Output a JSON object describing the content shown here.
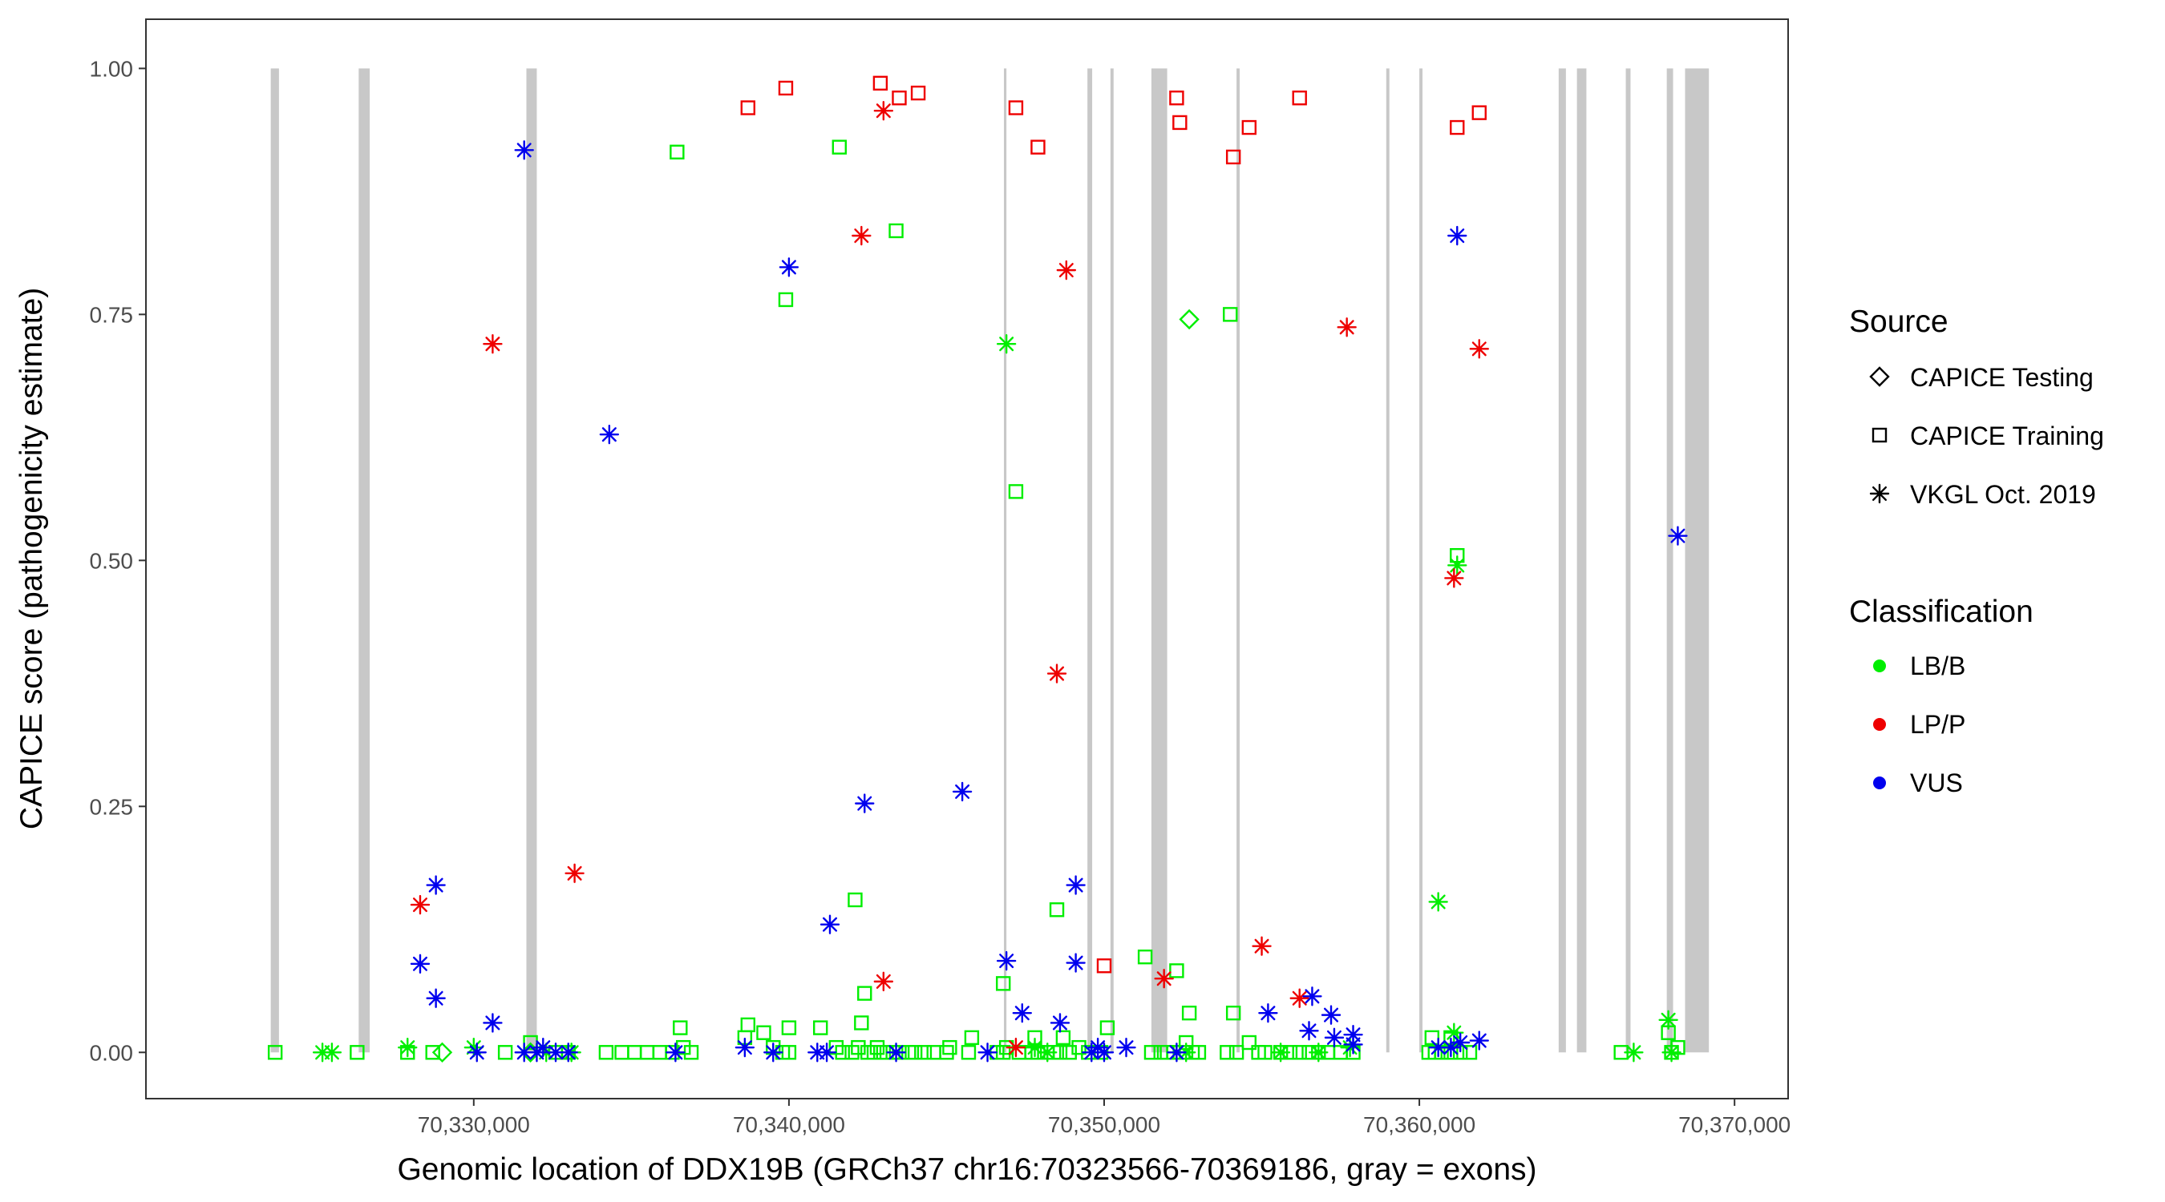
{
  "chart_data": {
    "type": "scatter",
    "title": "",
    "xlabel": "Genomic location of DDX19B (GRCh37 chr16:70323566-70369186, gray = exons)",
    "ylabel": "CAPICE score (pathogenicity estimate)",
    "xlim": [
      70319600,
      70371700
    ],
    "ylim": [
      -0.047,
      1.05
    ],
    "x_ticks": [
      70330000,
      70340000,
      70350000,
      70360000,
      70370000
    ],
    "x_tick_labels": [
      "70,330,000",
      "70,340,000",
      "70,350,000",
      "70,360,000",
      "70,370,000"
    ],
    "y_ticks": [
      0,
      0.25,
      0.5,
      0.75,
      1
    ],
    "y_tick_labels": [
      "0.00",
      "0.25",
      "0.50",
      "0.75",
      "1.00"
    ],
    "grid": false,
    "legend_placement": "right",
    "exon_color": "#c8c8c8",
    "exons": [
      [
        70323560,
        70323820
      ],
      [
        70326350,
        70326700
      ],
      [
        70331670,
        70332000
      ],
      [
        70346820,
        70346900
      ],
      [
        70349470,
        70349620
      ],
      [
        70350200,
        70350300
      ],
      [
        70351500,
        70352000
      ],
      [
        70354200,
        70354300
      ],
      [
        70358950,
        70359050
      ],
      [
        70360000,
        70360100
      ],
      [
        70364420,
        70364650
      ],
      [
        70365000,
        70365300
      ],
      [
        70366550,
        70366700
      ],
      [
        70367850,
        70368050
      ],
      [
        70368430,
        70369186
      ]
    ],
    "legends": {
      "source": {
        "title": "Source",
        "items": [
          {
            "label": "CAPICE Testing",
            "shape": "diamond"
          },
          {
            "label": "CAPICE Training",
            "shape": "square"
          },
          {
            "label": "VKGL Oct. 2019",
            "shape": "asterisk"
          }
        ]
      },
      "classification": {
        "title": "Classification",
        "items": [
          {
            "label": "LB/B",
            "color": "#00ee00"
          },
          {
            "label": "LP/P",
            "color": "#ee0000"
          },
          {
            "label": "VUS",
            "color": "#0000ee"
          }
        ]
      }
    },
    "series": [
      {
        "name": "CAPICE Testing / LB/B",
        "shape": "diamond",
        "color": "#00ee00",
        "points": [
          [
            70329000,
            0.0
          ],
          [
            70331800,
            0.0
          ],
          [
            70352700,
            0.745
          ]
        ]
      },
      {
        "name": "CAPICE Training / LB/B",
        "shape": "square",
        "color": "#00ee00",
        "points": [
          [
            70323700,
            0.0
          ],
          [
            70326300,
            0.0
          ],
          [
            70327900,
            0.0
          ],
          [
            70328700,
            0.0
          ],
          [
            70331000,
            0.0
          ],
          [
            70332600,
            0.0
          ],
          [
            70333000,
            0.0
          ],
          [
            70334200,
            0.0
          ],
          [
            70334700,
            0.0
          ],
          [
            70335100,
            0.0
          ],
          [
            70335500,
            0.0
          ],
          [
            70335900,
            0.0
          ],
          [
            70336300,
            0.0
          ],
          [
            70336650,
            0.005
          ],
          [
            70336900,
            0.0
          ],
          [
            70331800,
            0.01
          ],
          [
            70336550,
            0.025
          ],
          [
            70336450,
            0.915
          ],
          [
            70338600,
            0.015
          ],
          [
            70338700,
            0.028
          ],
          [
            70339200,
            0.02
          ],
          [
            70339500,
            0.005
          ],
          [
            70339800,
            0.0
          ],
          [
            70340000,
            0.0
          ],
          [
            70340000,
            0.025
          ],
          [
            70341000,
            0.025
          ],
          [
            70341500,
            0.005
          ],
          [
            70341700,
            0.0
          ],
          [
            70342000,
            0.0
          ],
          [
            70342200,
            0.005
          ],
          [
            70342500,
            0.0
          ],
          [
            70342700,
            0.0
          ],
          [
            70342800,
            0.005
          ],
          [
            70343000,
            0.0
          ],
          [
            70343300,
            0.0
          ],
          [
            70343500,
            0.0
          ],
          [
            70343800,
            0.0
          ],
          [
            70344000,
            0.0
          ],
          [
            70344300,
            0.0
          ],
          [
            70344600,
            0.0
          ],
          [
            70345000,
            0.0
          ],
          [
            70345100,
            0.005
          ],
          [
            70345700,
            0.0
          ],
          [
            70342300,
            0.03
          ],
          [
            70342400,
            0.06
          ],
          [
            70342100,
            0.155
          ],
          [
            70341600,
            0.92
          ],
          [
            70343400,
            0.835
          ],
          [
            70339900,
            0.765
          ],
          [
            70345800,
            0.015
          ],
          [
            70346600,
            0.0
          ],
          [
            70346800,
            0.0
          ],
          [
            70346900,
            0.005
          ],
          [
            70347300,
            0.0
          ],
          [
            70347700,
            0.0
          ],
          [
            70347900,
            0.0
          ],
          [
            70348200,
            0.0
          ],
          [
            70348400,
            0.0
          ],
          [
            70348600,
            0.0
          ],
          [
            70348700,
            0.015
          ],
          [
            70348900,
            0.0
          ],
          [
            70349200,
            0.005
          ],
          [
            70349500,
            0.0
          ],
          [
            70347800,
            0.015
          ],
          [
            70349900,
            0.0
          ],
          [
            70350100,
            0.025
          ],
          [
            70346800,
            0.07
          ],
          [
            70348500,
            0.145
          ],
          [
            70347200,
            0.57
          ],
          [
            70351500,
            0.0
          ],
          [
            70351800,
            0.0
          ],
          [
            70352000,
            0.0
          ],
          [
            70352200,
            0.0
          ],
          [
            70352500,
            0.0
          ],
          [
            70352800,
            0.0
          ],
          [
            70353000,
            0.0
          ],
          [
            70352600,
            0.01
          ],
          [
            70352700,
            0.04
          ],
          [
            70351300,
            0.097
          ],
          [
            70352300,
            0.083
          ],
          [
            70353900,
            0.0
          ],
          [
            70354200,
            0.0
          ],
          [
            70354600,
            0.01
          ],
          [
            70354900,
            0.0
          ],
          [
            70355100,
            0.0
          ],
          [
            70354100,
            0.04
          ],
          [
            70355600,
            0.0
          ],
          [
            70355900,
            0.0
          ],
          [
            70356200,
            0.0
          ],
          [
            70356500,
            0.0
          ],
          [
            70356800,
            0.0
          ],
          [
            70357100,
            0.0
          ],
          [
            70357500,
            0.0
          ],
          [
            70357900,
            0.0
          ],
          [
            70354000,
            0.75
          ],
          [
            70360300,
            0.0
          ],
          [
            70360500,
            0.0
          ],
          [
            70360700,
            0.0
          ],
          [
            70361000,
            0.0
          ],
          [
            70361300,
            0.0
          ],
          [
            70361600,
            0.0
          ],
          [
            70360400,
            0.015
          ],
          [
            70361000,
            0.015
          ],
          [
            70361200,
            0.505
          ],
          [
            70368000,
            0.0
          ],
          [
            70368200,
            0.005
          ],
          [
            70367900,
            0.02
          ],
          [
            70366400,
            0.0
          ]
        ]
      },
      {
        "name": "CAPICE Training / LP/P",
        "shape": "square",
        "color": "#ee0000",
        "points": [
          [
            70338700,
            0.96
          ],
          [
            70339900,
            0.98
          ],
          [
            70342900,
            0.985
          ],
          [
            70343500,
            0.97
          ],
          [
            70344100,
            0.975
          ],
          [
            70347200,
            0.96
          ],
          [
            70347900,
            0.92
          ],
          [
            70350000,
            0.088
          ],
          [
            70352300,
            0.97
          ],
          [
            70352400,
            0.945
          ],
          [
            70354100,
            0.91
          ],
          [
            70354600,
            0.94
          ],
          [
            70356200,
            0.97
          ],
          [
            70361200,
            0.94
          ],
          [
            70361900,
            0.955
          ]
        ]
      },
      {
        "name": "VKGL Oct. 2019 / LB/B",
        "shape": "asterisk",
        "color": "#00ee00",
        "points": [
          [
            70325200,
            0.0
          ],
          [
            70325500,
            0.0
          ],
          [
            70327900,
            0.005
          ],
          [
            70330000,
            0.005
          ],
          [
            70332300,
            0.0
          ],
          [
            70333100,
            0.0
          ],
          [
            70346900,
            0.72
          ],
          [
            70347800,
            0.005
          ],
          [
            70348200,
            0.0
          ],
          [
            70352600,
            0.0
          ],
          [
            70355600,
            0.0
          ],
          [
            70356800,
            0.0
          ],
          [
            70357800,
            0.005
          ],
          [
            70360600,
            0.153
          ],
          [
            70361100,
            0.02
          ],
          [
            70361200,
            0.495
          ],
          [
            70366800,
            0.0
          ],
          [
            70367900,
            0.033
          ],
          [
            70368000,
            0.0
          ]
        ]
      },
      {
        "name": "VKGL Oct. 2019 / LP/P",
        "shape": "asterisk",
        "color": "#ee0000",
        "points": [
          [
            70328300,
            0.15
          ],
          [
            70330600,
            0.72
          ],
          [
            70333200,
            0.182
          ],
          [
            70342300,
            0.83
          ],
          [
            70343000,
            0.957
          ],
          [
            70343000,
            0.072
          ],
          [
            70347200,
            0.005
          ],
          [
            70348500,
            0.385
          ],
          [
            70348800,
            0.795
          ],
          [
            70351900,
            0.075
          ],
          [
            70355000,
            0.108
          ],
          [
            70356200,
            0.055
          ],
          [
            70357700,
            0.737
          ],
          [
            70361100,
            0.482
          ],
          [
            70361900,
            0.715
          ]
        ]
      },
      {
        "name": "VKGL Oct. 2019 / VUS",
        "shape": "asterisk",
        "color": "#0000ee",
        "points": [
          [
            70328300,
            0.09
          ],
          [
            70328800,
            0.17
          ],
          [
            70328800,
            0.055
          ],
          [
            70330100,
            0.0
          ],
          [
            70330600,
            0.03
          ],
          [
            70331600,
            0.0
          ],
          [
            70332000,
            0.0
          ],
          [
            70332200,
            0.005
          ],
          [
            70332600,
            0.0
          ],
          [
            70333000,
            0.0
          ],
          [
            70331600,
            0.917
          ],
          [
            70334300,
            0.628
          ],
          [
            70336400,
            0.0
          ],
          [
            70338600,
            0.005
          ],
          [
            70339500,
            0.0
          ],
          [
            70340000,
            0.798
          ],
          [
            70340900,
            0.0
          ],
          [
            70341200,
            0.0
          ],
          [
            70341300,
            0.13
          ],
          [
            70342400,
            0.253
          ],
          [
            70343400,
            0.0
          ],
          [
            70345500,
            0.265
          ],
          [
            70346300,
            0.0
          ],
          [
            70346900,
            0.093
          ],
          [
            70347400,
            0.04
          ],
          [
            70348600,
            0.03
          ],
          [
            70349100,
            0.17
          ],
          [
            70349100,
            0.091
          ],
          [
            70349600,
            0.0
          ],
          [
            70349800,
            0.005
          ],
          [
            70350000,
            0.0
          ],
          [
            70350700,
            0.005
          ],
          [
            70352300,
            0.0
          ],
          [
            70355200,
            0.04
          ],
          [
            70356500,
            0.022
          ],
          [
            70356600,
            0.057
          ],
          [
            70357200,
            0.038
          ],
          [
            70357300,
            0.015
          ],
          [
            70357900,
            0.018
          ],
          [
            70357900,
            0.008
          ],
          [
            70360600,
            0.005
          ],
          [
            70361000,
            0.005
          ],
          [
            70361300,
            0.01
          ],
          [
            70361900,
            0.012
          ],
          [
            70361200,
            0.83
          ],
          [
            70368200,
            0.525
          ]
        ]
      }
    ]
  }
}
